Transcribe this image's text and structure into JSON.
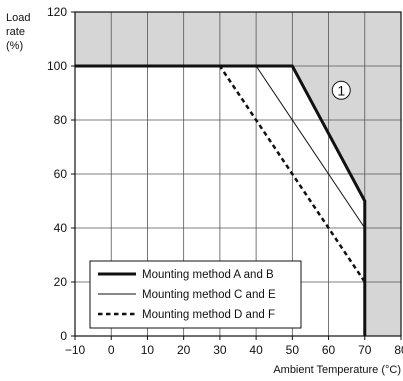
{
  "chart_data": {
    "type": "line",
    "title": "",
    "ylabel_lines": [
      "Load",
      "rate",
      "(%)"
    ],
    "xlabel": "Ambient Temperature (°C)",
    "xlim": [
      -10,
      80
    ],
    "ylim": [
      0,
      120
    ],
    "x_ticks": [
      -10,
      0,
      10,
      20,
      30,
      40,
      50,
      60,
      70,
      80
    ],
    "x_tick_labels": [
      "−10",
      "0",
      "10",
      "20",
      "30",
      "40",
      "50",
      "60",
      "70",
      "80"
    ],
    "y_ticks": [
      0,
      20,
      40,
      60,
      80,
      100,
      120
    ],
    "y_tick_labels": [
      "0",
      "20",
      "40",
      "60",
      "80",
      "100",
      "120"
    ],
    "grid": true,
    "legend_position": "bottom-left",
    "shaded_region": {
      "boundary": [
        [
          -10,
          100
        ],
        [
          50,
          100
        ],
        [
          70,
          50
        ],
        [
          70,
          0
        ]
      ],
      "color": "#d6d6d6"
    },
    "annotation": {
      "text": "1",
      "x": 63.5,
      "y": 91,
      "style": "circled"
    },
    "series": [
      {
        "name": "Mounting method A and B",
        "style": "thick-solid",
        "points": [
          [
            -10,
            100
          ],
          [
            50,
            100
          ],
          [
            70,
            50
          ],
          [
            70,
            0
          ]
        ]
      },
      {
        "name": "Mounting method C and E",
        "style": "thin-solid",
        "points": [
          [
            -10,
            100
          ],
          [
            40,
            100
          ],
          [
            70,
            40
          ],
          [
            70,
            0
          ]
        ]
      },
      {
        "name": "Mounting method D and F",
        "style": "dashed",
        "points": [
          [
            -10,
            100
          ],
          [
            30,
            100
          ],
          [
            70,
            20
          ],
          [
            70,
            0
          ]
        ]
      }
    ]
  }
}
